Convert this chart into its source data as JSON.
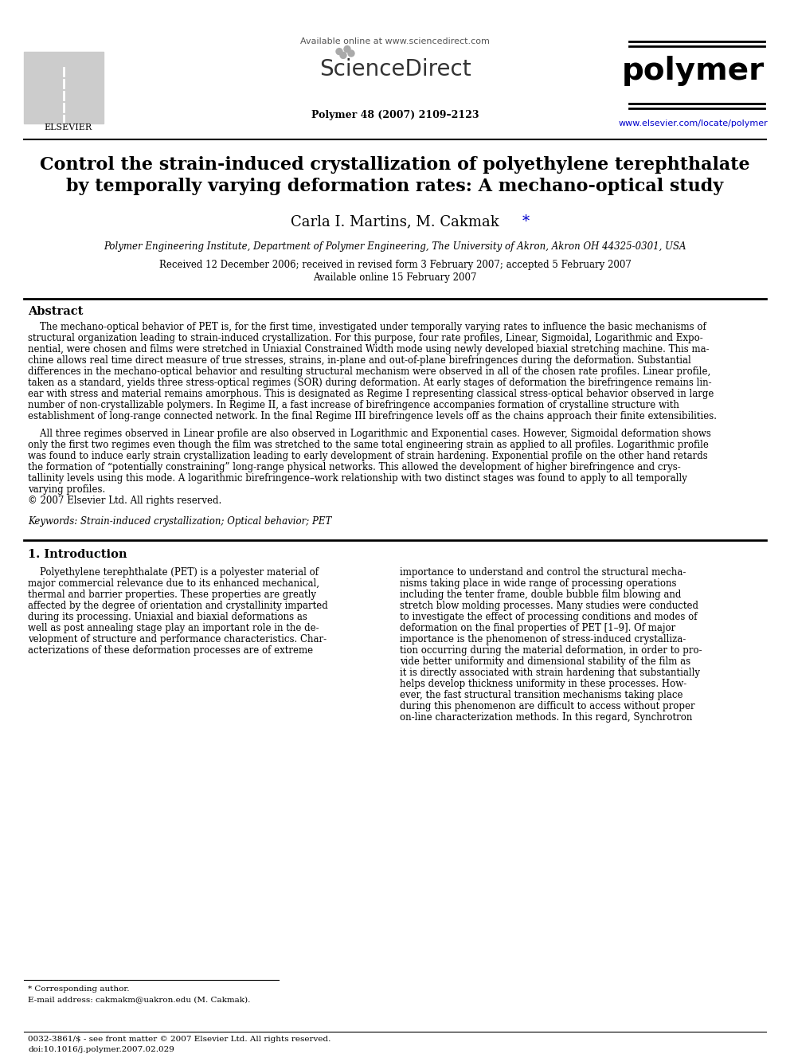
{
  "bg_color": "#ffffff",
  "title_line1": "Control the strain-induced crystallization of polyethylene terephthalate",
  "title_line2": "by temporally varying deformation rates: A mechano-optical study",
  "authors": "Carla I. Martins, M. Cakmak*",
  "affiliation": "Polymer Engineering Institute, Department of Polymer Engineering, The University of Akron, Akron OH 44325-0301, USA",
  "dates": "Received 12 December 2006; received in revised form 3 February 2007; accepted 5 February 2007",
  "available": "Available online 15 February 2007",
  "header_url": "Available online at www.sciencedirect.com",
  "journal_name": "polymer",
  "journal_ref": "Polymer 48 (2007) 2109–2123",
  "journal_url": "www.elsevier.com/locate/polymer",
  "abstract_title": "Abstract",
  "abstract_para1": "    The mechano-optical behavior of PET is, for the first time, investigated under temporally varying rates to influence the basic mechanisms of\nstructural organization leading to strain-induced crystallization. For this purpose, four rate profiles, Linear, Sigmoidal, Logarithmic and Expo-\nnential, were chosen and films were stretched in Uniaxial Constrained Width mode using newly developed biaxial stretching machine. This ma-\nchine allows real time direct measure of true stresses, strains, in-plane and out-of-plane birefringences during the deformation. Substantial\ndifferences in the mechano-optical behavior and resulting structural mechanism were observed in all of the chosen rate profiles. Linear profile,\ntaken as a standard, yields three stress-optical regimes (SOR) during deformation. At early stages of deformation the birefringence remains lin-\near with stress and material remains amorphous. This is designated as Regime I representing classical stress-optical behavior observed in large\nnumber of non-crystallizable polymers. In Regime II, a fast increase of birefringence accompanies formation of crystalline structure with\nestablishment of long-range connected network. In the final Regime III birefringence levels off as the chains approach their finite extensibilities.",
  "abstract_para2": "    All three regimes observed in Linear profile are also observed in Logarithmic and Exponential cases. However, Sigmoidal deformation shows\nonly the first two regimes even though the film was stretched to the same total engineering strain as applied to all profiles. Logarithmic profile\nwas found to induce early strain crystallization leading to early development of strain hardening. Exponential profile on the other hand retards\nthe formation of “potentially constraining” long-range physical networks. This allowed the development of higher birefringence and crys-\ntallinity levels using this mode. A logarithmic birefringence–work relationship with two distinct stages was found to apply to all temporally\nvarying profiles.\n© 2007 Elsevier Ltd. All rights reserved.",
  "keywords_line": "Keywords: Strain-induced crystallization; Optical behavior; PET",
  "section1_title": "1. Introduction",
  "section1_left": "    Polyethylene terephthalate (PET) is a polyester material of\nmajor commercial relevance due to its enhanced mechanical,\nthermal and barrier properties. These properties are greatly\naffected by the degree of orientation and crystallinity imparted\nduring its processing. Uniaxial and biaxial deformations as\nwell as post annealing stage play an important role in the de-\nvelopment of structure and performance characteristics. Char-\nacterizations of these deformation processes are of extreme",
  "section1_right": "importance to understand and control the structural mecha-\nnisms taking place in wide range of processing operations\nincluding the tenter frame, double bubble film blowing and\nstretch blow molding processes. Many studies were conducted\nto investigate the effect of processing conditions and modes of\ndeformation on the final properties of PET [1–9]. Of major\nimportance is the phenomenon of stress-induced crystalliza-\ntion occurring during the material deformation, in order to pro-\nvide better uniformity and dimensional stability of the film as\nit is directly associated with strain hardening that substantially\nhelps develop thickness uniformity in these processes. How-\never, the fast structural transition mechanisms taking place\nduring this phenomenon are difficult to access without proper\non-line characterization methods. In this regard, Synchrotron",
  "footnote_star": "* Corresponding author.",
  "footnote_email": "E-mail address: cakmakm@uakron.edu (M. Cakmak).",
  "footer_issn": "0032-3861/$ - see front matter © 2007 Elsevier Ltd. All rights reserved.",
  "footer_doi": "doi:10.1016/j.polymer.2007.02.029"
}
